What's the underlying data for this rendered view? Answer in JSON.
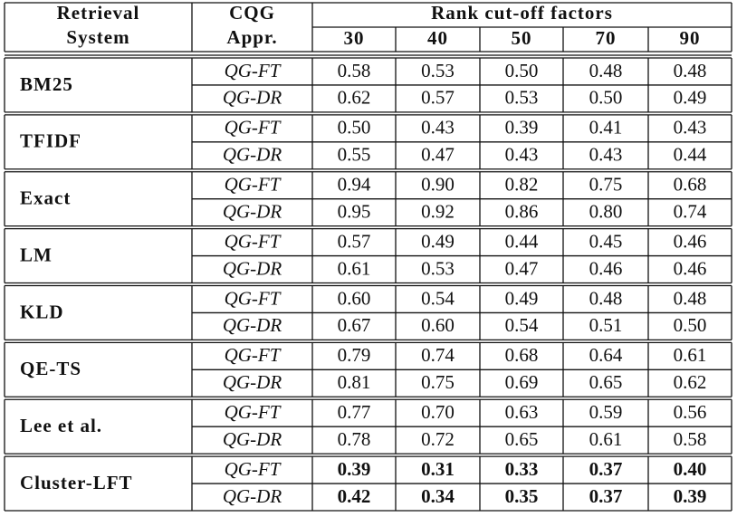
{
  "header": {
    "system": [
      "Retrieval",
      "System"
    ],
    "approach": [
      "CQG",
      "Appr."
    ],
    "cutoff_title": "Rank cut-off factors",
    "cutoffs": [
      "30",
      "40",
      "50",
      "70",
      "90"
    ]
  },
  "groups": [
    {
      "system": "BM25",
      "rows": [
        {
          "approach": "QG-FT",
          "values": [
            "0.58",
            "0.53",
            "0.50",
            "0.48",
            "0.48"
          ]
        },
        {
          "approach": "QG-DR",
          "values": [
            "0.62",
            "0.57",
            "0.53",
            "0.50",
            "0.49"
          ]
        }
      ]
    },
    {
      "system": "TFIDF",
      "rows": [
        {
          "approach": "QG-FT",
          "values": [
            "0.50",
            "0.43",
            "0.39",
            "0.41",
            "0.43"
          ]
        },
        {
          "approach": "QG-DR",
          "values": [
            "0.55",
            "0.47",
            "0.43",
            "0.43",
            "0.44"
          ]
        }
      ]
    },
    {
      "system": "Exact",
      "rows": [
        {
          "approach": "QG-FT",
          "values": [
            "0.94",
            "0.90",
            "0.82",
            "0.75",
            "0.68"
          ]
        },
        {
          "approach": "QG-DR",
          "values": [
            "0.95",
            "0.92",
            "0.86",
            "0.80",
            "0.74"
          ]
        }
      ]
    },
    {
      "system": "LM",
      "rows": [
        {
          "approach": "QG-FT",
          "values": [
            "0.57",
            "0.49",
            "0.44",
            "0.45",
            "0.46"
          ]
        },
        {
          "approach": "QG-DR",
          "values": [
            "0.61",
            "0.53",
            "0.47",
            "0.46",
            "0.46"
          ]
        }
      ]
    },
    {
      "system": "KLD",
      "rows": [
        {
          "approach": "QG-FT",
          "values": [
            "0.60",
            "0.54",
            "0.49",
            "0.48",
            "0.48"
          ]
        },
        {
          "approach": "QG-DR",
          "values": [
            "0.67",
            "0.60",
            "0.54",
            "0.51",
            "0.50"
          ]
        }
      ]
    },
    {
      "system": "QE-TS",
      "rows": [
        {
          "approach": "QG-FT",
          "values": [
            "0.79",
            "0.74",
            "0.68",
            "0.64",
            "0.61"
          ]
        },
        {
          "approach": "QG-DR",
          "values": [
            "0.81",
            "0.75",
            "0.69",
            "0.65",
            "0.62"
          ]
        }
      ]
    },
    {
      "system": "Lee et al.",
      "rows": [
        {
          "approach": "QG-FT",
          "values": [
            "0.77",
            "0.70",
            "0.63",
            "0.59",
            "0.56"
          ]
        },
        {
          "approach": "QG-DR",
          "values": [
            "0.78",
            "0.72",
            "0.65",
            "0.61",
            "0.58"
          ]
        }
      ]
    },
    {
      "system": "Cluster-LFT",
      "bold": true,
      "rows": [
        {
          "approach": "QG-FT",
          "values": [
            "0.39",
            "0.31",
            "0.33",
            "0.37",
            "0.40"
          ]
        },
        {
          "approach": "QG-DR",
          "values": [
            "0.42",
            "0.34",
            "0.35",
            "0.37",
            "0.39"
          ]
        }
      ]
    }
  ]
}
